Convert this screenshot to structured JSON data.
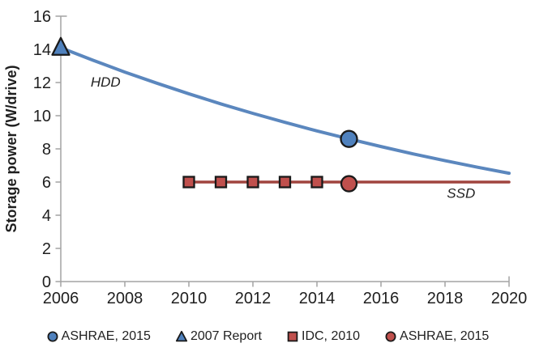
{
  "chart_data": {
    "type": "line",
    "title": "",
    "xlabel": "",
    "ylabel": "Storage power (W/drive)",
    "xlim": [
      2006,
      2020
    ],
    "ylim": [
      0,
      16
    ],
    "xticks": [
      2006,
      2008,
      2010,
      2012,
      2014,
      2016,
      2018,
      2020
    ],
    "yticks": [
      0,
      2,
      4,
      6,
      8,
      10,
      12,
      14,
      16
    ],
    "grid": false,
    "series": [
      {
        "name": "HDD trend",
        "color": "#5b87be",
        "line_width": 4,
        "x": [
          2006,
          2007,
          2008,
          2009,
          2010,
          2011,
          2012,
          2013,
          2014,
          2015,
          2016,
          2017,
          2018,
          2019,
          2020
        ],
        "y": [
          14.1,
          13.35,
          12.63,
          11.96,
          11.32,
          10.71,
          10.14,
          9.6,
          9.08,
          8.6,
          8.14,
          7.7,
          7.29,
          6.9,
          6.53
        ]
      },
      {
        "name": "SSD trend",
        "color": "#a0443e",
        "line_width": 3.5,
        "x": [
          2010,
          2020
        ],
        "y": [
          6,
          6
        ]
      }
    ],
    "markers": [
      {
        "name": "2007 Report",
        "shape": "triangle",
        "fill": "#4f81bd",
        "stroke": "#1a1a1a",
        "size": 21,
        "points": [
          [
            2006,
            14.1
          ]
        ]
      },
      {
        "name": "ASHRAE, 2015 (HDD)",
        "shape": "circle",
        "fill": "#4f81bd",
        "stroke": "#1a1a1a",
        "size": 20,
        "points": [
          [
            2015,
            8.6
          ]
        ]
      },
      {
        "name": "IDC, 2010",
        "shape": "square",
        "fill": "#c0504d",
        "stroke": "#1a1a1a",
        "size": 13,
        "points": [
          [
            2010,
            6
          ],
          [
            2011,
            6
          ],
          [
            2012,
            6
          ],
          [
            2013,
            6
          ],
          [
            2014,
            6
          ]
        ]
      },
      {
        "name": "ASHRAE, 2015 (SSD)",
        "shape": "circle",
        "fill": "#c0504d",
        "stroke": "#1a1a1a",
        "size": 19,
        "points": [
          [
            2015,
            5.9
          ]
        ]
      }
    ],
    "annotations": [
      {
        "text": "HDD",
        "x": 2007.4,
        "y": 12.05
      },
      {
        "text": "SSD",
        "x": 2018.5,
        "y": 5.35
      }
    ],
    "legend": {
      "position": "bottom",
      "items": [
        {
          "shape": "circle",
          "fill": "#4f81bd",
          "stroke": "#1a1a1a",
          "label": "ASHRAE, 2015"
        },
        {
          "shape": "triangle",
          "fill": "#4f81bd",
          "stroke": "#1a1a1a",
          "label": "2007 Report"
        },
        {
          "shape": "square",
          "fill": "#c0504d",
          "stroke": "#1a1a1a",
          "label": "IDC, 2010"
        },
        {
          "shape": "circle",
          "fill": "#c0504d",
          "stroke": "#1a1a1a",
          "label": "ASHRAE, 2015"
        }
      ]
    },
    "axis_color": "#a3a3a3",
    "text_color": "#1f1f1f"
  }
}
